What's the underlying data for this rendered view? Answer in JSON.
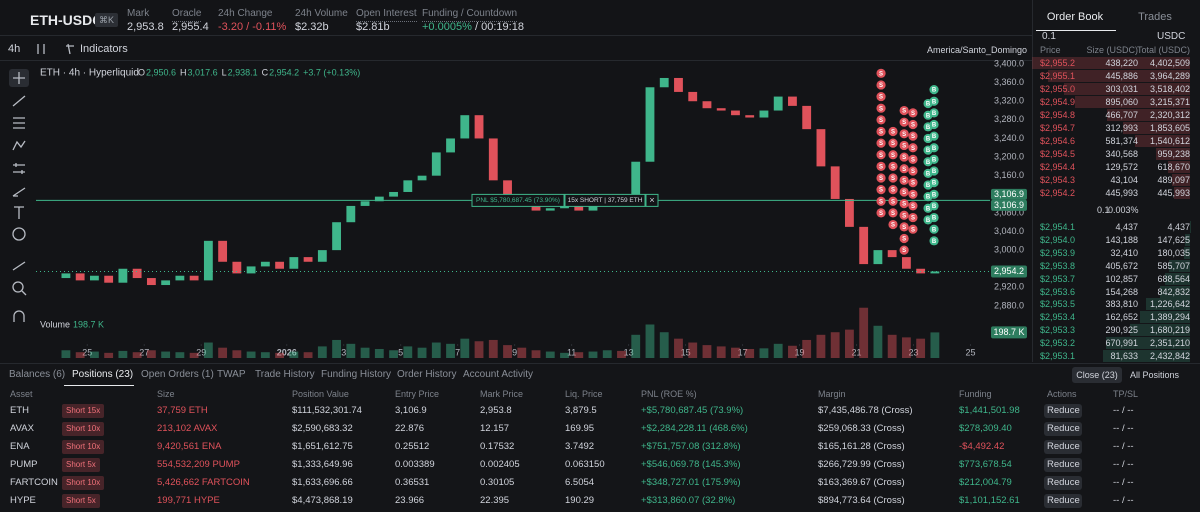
{
  "header": {
    "symbol": "ETH-USDC",
    "shortcut": "⌘K",
    "stats": [
      {
        "label": "Mark",
        "value": "2,953.8"
      },
      {
        "label": "Oracle",
        "value": "2,955.4"
      },
      {
        "label": "24h Change",
        "value": "-3.20 / -0.11%",
        "color": "#e0525b"
      },
      {
        "label": "24h Volume",
        "value": "$2.32b"
      },
      {
        "label": "Open Interest",
        "value": "$2.81b"
      },
      {
        "label": "Funding / Countdown",
        "value": "+0.0005%",
        "color": "#3fb68b",
        "countdown": "/ 00:19:18"
      }
    ]
  },
  "toolbar": {
    "interval": "4h",
    "indicators": "Indicators",
    "timezone": "America/Santo_Domingo"
  },
  "chart_data": {
    "type": "candlestick",
    "title": "ETH · 4h · Hyperliquid",
    "legend_values": [
      {
        "key": "O",
        "value": "2,950.6"
      },
      {
        "key": "H",
        "value": "3,017.6"
      },
      {
        "key": "L",
        "value": "2,938.1"
      },
      {
        "key": "C",
        "value": "2,954.2"
      }
    ],
    "change": "+3.7 (+0.13%)",
    "up_color": "#3fb68b",
    "down_color": "#e0525b",
    "x": [
      0.25,
      0.75,
      1.25,
      1.75,
      2.25,
      2.75,
      3.25,
      3.75,
      4.25,
      4.75,
      5.25,
      5.75,
      6.25,
      6.75,
      7.25,
      7.75,
      8.25,
      8.75,
      9.25,
      9.75,
      10.25,
      10.75,
      11.25,
      11.75,
      12.25,
      12.75,
      13.25,
      13.75,
      14.25,
      14.75,
      15.25,
      15.75,
      16.25,
      16.75,
      17.25,
      17.75,
      18.25,
      18.75,
      19.25,
      19.75,
      20.25,
      20.75,
      21.25,
      21.75,
      22.25,
      22.75,
      23.25,
      23.75,
      24.25,
      24.75,
      25.25,
      25.75,
      26.25,
      26.75,
      27.25,
      27.75,
      28.25,
      28.75,
      29.25,
      29.75,
      30.25,
      30.75
    ],
    "first_open": 2940,
    "close": [
      2950,
      2935,
      2945,
      2930,
      2960,
      2940,
      2925,
      2935,
      2945,
      2935,
      3020,
      2975,
      2950,
      2965,
      2975,
      2960,
      2985,
      2975,
      3000,
      3060,
      3095,
      3105,
      3115,
      3125,
      3150,
      3160,
      3210,
      3240,
      3290,
      3240,
      3150,
      3120,
      3100,
      3085,
      3090,
      3095,
      3085,
      3100,
      3110,
      3105,
      3190,
      3350,
      3370,
      3340,
      3320,
      3305,
      3300,
      3290,
      3285,
      3300,
      3330,
      3310,
      3260,
      3180,
      3110,
      3050,
      2970,
      3000,
      2985,
      2960,
      2950,
      2954.2
    ],
    "xlim": [
      -0.8,
      33
    ],
    "xticks": [
      {
        "value": 1,
        "label": "25"
      },
      {
        "value": 3,
        "label": "27"
      },
      {
        "value": 5,
        "label": "29"
      },
      {
        "value": 8,
        "label": "2026"
      },
      {
        "value": 10,
        "label": "3"
      },
      {
        "value": 12,
        "label": "5"
      },
      {
        "value": 14,
        "label": "7"
      },
      {
        "value": 16,
        "label": "9"
      },
      {
        "value": 18,
        "label": "11"
      },
      {
        "value": 20,
        "label": "13"
      },
      {
        "value": 22,
        "label": "15"
      },
      {
        "value": 24,
        "label": "17"
      },
      {
        "value": 26,
        "label": "19"
      },
      {
        "value": 28,
        "label": "21"
      },
      {
        "value": 30,
        "label": "23"
      },
      {
        "value": 32,
        "label": "25"
      }
    ],
    "ylim": [
      2800,
      3420
    ],
    "yticks": [
      {
        "value": 3400,
        "label": "3,400.0"
      },
      {
        "value": 3360,
        "label": "3,360.0"
      },
      {
        "value": 3320,
        "label": "3,320.0"
      },
      {
        "value": 3280,
        "label": "3,280.0"
      },
      {
        "value": 3240,
        "label": "3,240.0"
      },
      {
        "value": 3200,
        "label": "3,200.0"
      },
      {
        "value": 3160,
        "label": "3,160.0"
      },
      {
        "value": 3080,
        "label": "3,080.0"
      },
      {
        "value": 3040,
        "label": "3,040.0"
      },
      {
        "value": 3000,
        "label": "3,000.0"
      },
      {
        "value": 2920,
        "label": "2,920.0"
      },
      {
        "value": 2880,
        "label": "2,880.0"
      }
    ],
    "position_line": {
      "price": 3106.9,
      "label": "3,106.9",
      "pnl": "PNL $5,780,687.45 (73.90%)",
      "side": "15x SHORT | 37,759 ETH",
      "close": "×"
    },
    "last_price": {
      "price": 2954.2,
      "label": "2,954.2"
    },
    "volume": {
      "label": "Volume",
      "last_label": "198.7 K",
      "ylim": [
        0,
        450
      ],
      "values": [
        60,
        45,
        50,
        40,
        55,
        45,
        60,
        50,
        45,
        40,
        120,
        80,
        60,
        50,
        45,
        40,
        50,
        45,
        90,
        140,
        110,
        80,
        70,
        60,
        90,
        80,
        120,
        110,
        150,
        130,
        140,
        100,
        80,
        60,
        50,
        40,
        45,
        50,
        60,
        55,
        180,
        260,
        200,
        150,
        120,
        100,
        90,
        80,
        70,
        75,
        110,
        95,
        140,
        180,
        200,
        220,
        390,
        250,
        180,
        160,
        150,
        198.7
      ]
    },
    "trade_markers": [
      {
        "side": "S",
        "x": 28.86,
        "prices": [
          3380,
          3355,
          3330,
          3305,
          3280,
          3255,
          3230,
          3205,
          3180,
          3155,
          3130,
          3105,
          3080
        ]
      },
      {
        "side": "S",
        "x": 29.28,
        "prices": [
          3255,
          3230,
          3205,
          3180,
          3155,
          3130,
          3105,
          3080,
          3055
        ]
      },
      {
        "side": "S",
        "x": 29.67,
        "prices": [
          3300,
          3275,
          3250,
          3225,
          3200,
          3175,
          3150,
          3125,
          3100,
          3075,
          3050,
          3025,
          3000
        ]
      },
      {
        "side": "S",
        "x": 29.98,
        "prices": [
          3295,
          3270,
          3245,
          3220,
          3195,
          3170,
          3145,
          3120,
          3095,
          3070,
          3045
        ]
      },
      {
        "side": "B",
        "x": 30.51,
        "prices": [
          3315,
          3290,
          3265,
          3240,
          3215,
          3190,
          3165,
          3140,
          3115,
          3090,
          3065
        ]
      },
      {
        "side": "B",
        "x": 30.72,
        "prices": [
          3345,
          3320,
          3295,
          3270,
          3245,
          3220,
          3195,
          3170,
          3145,
          3120,
          3095,
          3070,
          3045,
          3020
        ]
      }
    ]
  },
  "order_book": {
    "tabs": [
      "Order Book",
      "Trades"
    ],
    "tick": "0.1",
    "currency": "USDC",
    "headers": [
      "Price",
      "Size (USDC)",
      "Total (USDC)"
    ],
    "asks": [
      [
        "$2,955.2",
        "438,220",
        "4,402,509"
      ],
      [
        "$2,955.1",
        "445,886",
        "3,964,289"
      ],
      [
        "$2,955.0",
        "303,031",
        "3,518,402"
      ],
      [
        "$2,954.9",
        "895,060",
        "3,215,371"
      ],
      [
        "$2,954.8",
        "466,707",
        "2,320,312"
      ],
      [
        "$2,954.7",
        "312,993",
        "1,853,605"
      ],
      [
        "$2,954.6",
        "581,374",
        "1,540,612"
      ],
      [
        "$2,954.5",
        "340,568",
        "959,238"
      ],
      [
        "$2,954.4",
        "129,572",
        "618,670"
      ],
      [
        "$2,954.3",
        "43,104",
        "489,097"
      ],
      [
        "$2,954.2",
        "445,993",
        "445,993"
      ]
    ],
    "spread": [
      "0.1",
      "0.003%"
    ],
    "bids": [
      [
        "$2,954.1",
        "4,437",
        "4,437"
      ],
      [
        "$2,954.0",
        "143,188",
        "147,625"
      ],
      [
        "$2,953.9",
        "32,410",
        "180,035"
      ],
      [
        "$2,953.8",
        "405,672",
        "585,707"
      ],
      [
        "$2,953.7",
        "102,857",
        "688,564"
      ],
      [
        "$2,953.6",
        "154,268",
        "842,832"
      ],
      [
        "$2,953.5",
        "383,810",
        "1,226,642"
      ],
      [
        "$2,953.4",
        "162,652",
        "1,389,294"
      ],
      [
        "$2,953.3",
        "290,925",
        "1,680,219"
      ],
      [
        "$2,953.2",
        "670,991",
        "2,351,210"
      ],
      [
        "$2,953.1",
        "81,633",
        "2,432,842"
      ]
    ]
  },
  "positions": {
    "tabs": [
      "Balances (6)",
      "Positions (23)",
      "Open Orders (1)",
      "TWAP",
      "Trade History",
      "Funding History",
      "Order History",
      "Account Activity"
    ],
    "close_all": "Close (23)",
    "filter": "All Positions",
    "headers": [
      "Asset",
      "Size",
      "Position Value",
      "Entry Price",
      "Mark Price",
      "Liq. Price",
      "PNL (ROE %)",
      "Margin",
      "Funding",
      "Actions",
      "TP/SL"
    ],
    "rows": [
      {
        "asset": "ETH",
        "badge": "Short 15x",
        "size": "37,759 ETH",
        "value": "$111,532,301.74",
        "entry": "3,106.9",
        "mark": "2,953.8",
        "liq": "3,879.5",
        "pnl": "+$5,780,687.45 (73.9%)",
        "margin": "$7,435,486.78 (Cross)",
        "funding": "$1,441,501.98",
        "action": "Reduce",
        "tpsl": "-- / --"
      },
      {
        "asset": "AVAX",
        "badge": "Short 10x",
        "size": "213,102 AVAX",
        "value": "$2,590,683.32",
        "entry": "22.876",
        "mark": "12.157",
        "liq": "169.95",
        "pnl": "+$2,284,228.11 (468.6%)",
        "margin": "$259,068.33 (Cross)",
        "funding": "$278,309.40",
        "action": "Reduce",
        "tpsl": "-- / --"
      },
      {
        "asset": "ENA",
        "badge": "Short 10x",
        "size": "9,420,561 ENA",
        "value": "$1,651,612.75",
        "entry": "0.25512",
        "mark": "0.17532",
        "liq": "3.7492",
        "pnl": "+$751,757.08 (312.8%)",
        "margin": "$165,161.28 (Cross)",
        "funding": "-$4,492.42",
        "action": "Reduce",
        "tpsl": "-- / --"
      },
      {
        "asset": "PUMP",
        "badge": "Short 5x",
        "size": "554,532,209 PUMP",
        "value": "$1,333,649.96",
        "entry": "0.003389",
        "mark": "0.002405",
        "liq": "0.063150",
        "pnl": "+$546,069.78 (145.3%)",
        "margin": "$266,729.99 (Cross)",
        "funding": "$773,678.54",
        "action": "Reduce",
        "tpsl": "-- / --"
      },
      {
        "asset": "FARTCOIN",
        "badge": "Short 10x",
        "size": "5,426,662 FARTCOIN",
        "value": "$1,633,696.66",
        "entry": "0.36531",
        "mark": "0.30105",
        "liq": "6.5054",
        "pnl": "+$348,727.01 (175.9%)",
        "margin": "$163,369.67 (Cross)",
        "funding": "$212,004.79",
        "action": "Reduce",
        "tpsl": "-- / --"
      },
      {
        "asset": "HYPE",
        "badge": "Short 5x",
        "size": "199,771 HYPE",
        "value": "$4,473,868.19",
        "entry": "23.966",
        "mark": "22.395",
        "liq": "190.29",
        "pnl": "+$313,860.07 (32.8%)",
        "margin": "$894,773.64 (Cross)",
        "funding": "$1,101,152.61",
        "action": "Reduce",
        "tpsl": "-- / --"
      }
    ]
  }
}
